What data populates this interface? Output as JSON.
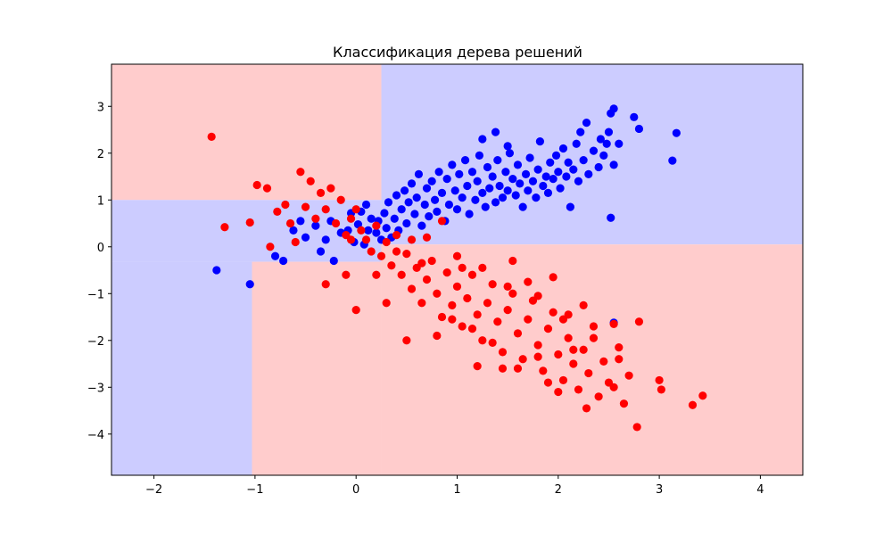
{
  "chart_data": {
    "type": "scatter",
    "title": "Классификация дерева решений",
    "xlabel": "",
    "ylabel": "",
    "xlim": [
      -2.42,
      4.42
    ],
    "ylim": [
      -4.88,
      3.9
    ],
    "x_ticks": [
      -2,
      -1,
      0,
      1,
      2,
      3,
      4
    ],
    "y_ticks": [
      -4,
      -3,
      -2,
      -1,
      0,
      1,
      2,
      3
    ],
    "x_tick_labels": [
      "−2",
      "−1",
      "0",
      "1",
      "2",
      "3",
      "4"
    ],
    "y_tick_labels": [
      "−4",
      "−3",
      "−2",
      "−1",
      "0",
      "1",
      "2",
      "3"
    ],
    "grid": false,
    "legend": "none",
    "colors": {
      "class_0": "#ff0000",
      "class_1": "#0000ff",
      "region_0": "#ffcccc",
      "region_1": "#ccccff"
    },
    "decision_regions": [
      {
        "class": "class_0",
        "x": [
          -2.42,
          0.25
        ],
        "y": [
          1.0,
          3.9
        ]
      },
      {
        "class": "class_1",
        "x": [
          0.25,
          4.42
        ],
        "y": [
          0.05,
          3.9
        ]
      },
      {
        "class": "class_1",
        "x": [
          -2.42,
          0.25
        ],
        "y": [
          -0.32,
          1.0
        ]
      },
      {
        "class": "class_1",
        "x": [
          -2.42,
          -1.03
        ],
        "y": [
          -4.88,
          -0.32
        ]
      },
      {
        "class": "class_0",
        "x": [
          -1.03,
          0.25
        ],
        "y": [
          -4.88,
          -0.32
        ]
      },
      {
        "class": "class_0",
        "x": [
          0.25,
          4.42
        ],
        "y": [
          -4.88,
          0.05
        ]
      }
    ],
    "series": [
      {
        "class": "class_1",
        "points": [
          [
            -1.38,
            -0.5
          ],
          [
            -1.05,
            -0.8
          ],
          [
            -0.8,
            -0.2
          ],
          [
            -0.72,
            -0.3
          ],
          [
            -0.62,
            0.35
          ],
          [
            -0.55,
            0.55
          ],
          [
            -0.5,
            0.2
          ],
          [
            -0.4,
            0.45
          ],
          [
            -0.35,
            -0.1
          ],
          [
            -0.3,
            0.15
          ],
          [
            -0.25,
            0.55
          ],
          [
            -0.22,
            -0.3
          ],
          [
            -0.15,
            0.3
          ],
          [
            -0.08,
            0.35
          ],
          [
            -0.05,
            0.72
          ],
          [
            -0.02,
            0.1
          ],
          [
            0.02,
            0.48
          ],
          [
            0.05,
            0.75
          ],
          [
            0.08,
            0.05
          ],
          [
            0.1,
            0.9
          ],
          [
            0.12,
            0.35
          ],
          [
            0.15,
            0.6
          ],
          [
            0.2,
            0.3
          ],
          [
            0.22,
            0.55
          ],
          [
            0.25,
            0.15
          ],
          [
            0.28,
            0.72
          ],
          [
            0.3,
            0.4
          ],
          [
            0.32,
            0.95
          ],
          [
            0.35,
            0.2
          ],
          [
            0.38,
            0.6
          ],
          [
            0.4,
            1.1
          ],
          [
            0.42,
            0.35
          ],
          [
            0.45,
            0.8
          ],
          [
            0.48,
            1.2
          ],
          [
            0.5,
            0.5
          ],
          [
            0.52,
            0.95
          ],
          [
            0.55,
            1.35
          ],
          [
            0.58,
            0.7
          ],
          [
            0.6,
            1.05
          ],
          [
            0.62,
            1.55
          ],
          [
            0.65,
            0.45
          ],
          [
            0.68,
            0.9
          ],
          [
            0.7,
            1.25
          ],
          [
            0.72,
            0.65
          ],
          [
            0.75,
            1.4
          ],
          [
            0.78,
            1.0
          ],
          [
            0.8,
            0.75
          ],
          [
            0.82,
            1.6
          ],
          [
            0.85,
            1.15
          ],
          [
            0.88,
            0.55
          ],
          [
            0.9,
            1.45
          ],
          [
            0.92,
            0.9
          ],
          [
            0.95,
            1.75
          ],
          [
            0.98,
            1.2
          ],
          [
            1.0,
            0.8
          ],
          [
            1.02,
            1.55
          ],
          [
            1.05,
            1.05
          ],
          [
            1.08,
            1.85
          ],
          [
            1.1,
            1.3
          ],
          [
            1.12,
            0.7
          ],
          [
            1.15,
            1.6
          ],
          [
            1.18,
            1.0
          ],
          [
            1.2,
            1.4
          ],
          [
            1.22,
            1.95
          ],
          [
            1.25,
            1.15
          ],
          [
            1.28,
            0.85
          ],
          [
            1.3,
            1.7
          ],
          [
            1.32,
            1.25
          ],
          [
            1.35,
            1.5
          ],
          [
            1.38,
            0.95
          ],
          [
            1.4,
            1.85
          ],
          [
            1.42,
            1.3
          ],
          [
            1.45,
            1.05
          ],
          [
            1.48,
            1.6
          ],
          [
            1.5,
            1.2
          ],
          [
            1.52,
            2.0
          ],
          [
            1.55,
            1.45
          ],
          [
            1.58,
            1.1
          ],
          [
            1.6,
            1.75
          ],
          [
            1.62,
            1.35
          ],
          [
            1.65,
            0.85
          ],
          [
            1.68,
            1.55
          ],
          [
            1.7,
            1.2
          ],
          [
            1.72,
            1.9
          ],
          [
            1.75,
            1.4
          ],
          [
            1.78,
            1.05
          ],
          [
            1.8,
            1.65
          ],
          [
            1.82,
            2.25
          ],
          [
            1.85,
            1.3
          ],
          [
            1.88,
            1.5
          ],
          [
            1.9,
            1.15
          ],
          [
            1.92,
            1.8
          ],
          [
            1.95,
            1.45
          ],
          [
            1.98,
            1.95
          ],
          [
            2.0,
            1.6
          ],
          [
            2.02,
            1.25
          ],
          [
            2.05,
            2.1
          ],
          [
            2.08,
            1.5
          ],
          [
            2.1,
            1.8
          ],
          [
            2.12,
            0.85
          ],
          [
            2.15,
            1.65
          ],
          [
            2.18,
            2.2
          ],
          [
            2.2,
            1.4
          ],
          [
            2.22,
            2.45
          ],
          [
            2.25,
            1.85
          ],
          [
            2.28,
            2.65
          ],
          [
            2.3,
            1.55
          ],
          [
            2.35,
            2.05
          ],
          [
            2.4,
            1.7
          ],
          [
            2.42,
            2.3
          ],
          [
            2.45,
            1.95
          ],
          [
            2.48,
            2.2
          ],
          [
            2.5,
            2.45
          ],
          [
            2.52,
            0.62
          ],
          [
            2.55,
            2.95
          ],
          [
            2.55,
            1.75
          ],
          [
            2.6,
            2.2
          ],
          [
            2.52,
            2.85
          ],
          [
            2.75,
            2.77
          ],
          [
            2.8,
            2.52
          ],
          [
            3.13,
            1.84
          ],
          [
            3.17,
            2.43
          ],
          [
            2.55,
            -1.62
          ],
          [
            1.38,
            2.45
          ],
          [
            1.5,
            2.15
          ],
          [
            1.25,
            2.3
          ]
        ]
      },
      {
        "class": "class_0",
        "points": [
          [
            -1.43,
            2.35
          ],
          [
            -1.3,
            0.42
          ],
          [
            -1.05,
            0.52
          ],
          [
            -0.98,
            1.32
          ],
          [
            -0.88,
            1.25
          ],
          [
            -0.85,
            0.0
          ],
          [
            -0.78,
            0.75
          ],
          [
            -0.7,
            0.9
          ],
          [
            -0.65,
            0.5
          ],
          [
            -0.6,
            0.1
          ],
          [
            -0.55,
            1.6
          ],
          [
            -0.5,
            0.85
          ],
          [
            -0.45,
            1.4
          ],
          [
            -0.4,
            0.6
          ],
          [
            -0.35,
            1.15
          ],
          [
            -0.3,
            0.8
          ],
          [
            -0.25,
            1.25
          ],
          [
            -0.2,
            0.5
          ],
          [
            -0.15,
            1.0
          ],
          [
            -0.1,
            0.25
          ],
          [
            -0.05,
            0.6
          ],
          [
            0.0,
            0.8
          ],
          [
            0.05,
            0.35
          ],
          [
            0.1,
            0.15
          ],
          [
            0.15,
            -0.1
          ],
          [
            0.2,
            0.45
          ],
          [
            0.25,
            -0.2
          ],
          [
            0.3,
            0.1
          ],
          [
            0.35,
            -0.4
          ],
          [
            0.4,
            0.25
          ],
          [
            0.45,
            -0.6
          ],
          [
            0.5,
            -0.15
          ],
          [
            0.55,
            -0.9
          ],
          [
            0.6,
            -0.45
          ],
          [
            0.65,
            -1.2
          ],
          [
            0.7,
            -0.7
          ],
          [
            0.75,
            -0.3
          ],
          [
            0.8,
            -1.0
          ],
          [
            0.85,
            -1.5
          ],
          [
            0.9,
            -0.55
          ],
          [
            0.95,
            -1.25
          ],
          [
            1.0,
            -0.85
          ],
          [
            1.05,
            -1.7
          ],
          [
            1.1,
            -1.1
          ],
          [
            1.15,
            -0.6
          ],
          [
            1.2,
            -1.45
          ],
          [
            1.25,
            -2.0
          ],
          [
            1.3,
            -1.2
          ],
          [
            1.35,
            -0.8
          ],
          [
            1.4,
            -1.6
          ],
          [
            1.45,
            -2.25
          ],
          [
            1.5,
            -1.35
          ],
          [
            1.55,
            -1.0
          ],
          [
            1.6,
            -1.85
          ],
          [
            1.65,
            -2.4
          ],
          [
            1.7,
            -1.55
          ],
          [
            1.75,
            -1.15
          ],
          [
            1.8,
            -2.1
          ],
          [
            1.85,
            -2.65
          ],
          [
            1.9,
            -1.75
          ],
          [
            1.95,
            -1.4
          ],
          [
            2.0,
            -2.3
          ],
          [
            2.05,
            -2.85
          ],
          [
            2.1,
            -1.95
          ],
          [
            2.15,
            -2.5
          ],
          [
            2.2,
            -3.05
          ],
          [
            2.25,
            -2.2
          ],
          [
            2.3,
            -2.7
          ],
          [
            2.35,
            -1.7
          ],
          [
            2.4,
            -3.2
          ],
          [
            2.45,
            -2.45
          ],
          [
            2.5,
            -2.9
          ],
          [
            2.55,
            -3.0
          ],
          [
            2.6,
            -2.4
          ],
          [
            2.65,
            -3.35
          ],
          [
            2.7,
            -2.75
          ],
          [
            2.78,
            -3.85
          ],
          [
            2.8,
            -1.6
          ],
          [
            3.0,
            -2.85
          ],
          [
            3.02,
            -3.05
          ],
          [
            3.33,
            -3.38
          ],
          [
            3.43,
            -3.18
          ],
          [
            2.28,
            -3.45
          ],
          [
            2.0,
            -3.1
          ],
          [
            1.2,
            -2.55
          ],
          [
            0.8,
            -1.9
          ],
          [
            0.5,
            -2.0
          ],
          [
            0.2,
            -0.6
          ],
          [
            -0.1,
            -0.6
          ],
          [
            -0.3,
            -0.8
          ],
          [
            0.0,
            -1.35
          ],
          [
            0.3,
            -1.2
          ],
          [
            1.55,
            -0.3
          ],
          [
            1.7,
            -0.75
          ],
          [
            1.95,
            -0.65
          ],
          [
            2.25,
            -1.25
          ],
          [
            2.55,
            -1.65
          ],
          [
            2.05,
            -1.55
          ],
          [
            1.35,
            -2.05
          ],
          [
            1.6,
            -2.6
          ],
          [
            1.15,
            -1.75
          ],
          [
            0.95,
            -1.55
          ],
          [
            0.65,
            -0.35
          ],
          [
            0.85,
            0.55
          ],
          [
            0.7,
            0.2
          ],
          [
            1.0,
            -0.2
          ],
          [
            1.25,
            -0.45
          ],
          [
            1.5,
            -0.85
          ],
          [
            1.8,
            -1.05
          ],
          [
            2.1,
            -1.45
          ],
          [
            2.35,
            -1.95
          ],
          [
            2.6,
            -2.15
          ],
          [
            1.45,
            -2.6
          ],
          [
            1.8,
            -2.35
          ],
          [
            1.9,
            -2.9
          ],
          [
            2.15,
            -2.2
          ],
          [
            1.05,
            -0.45
          ],
          [
            0.55,
            0.15
          ],
          [
            0.4,
            -0.1
          ],
          [
            -0.05,
            0.15
          ]
        ]
      }
    ]
  }
}
